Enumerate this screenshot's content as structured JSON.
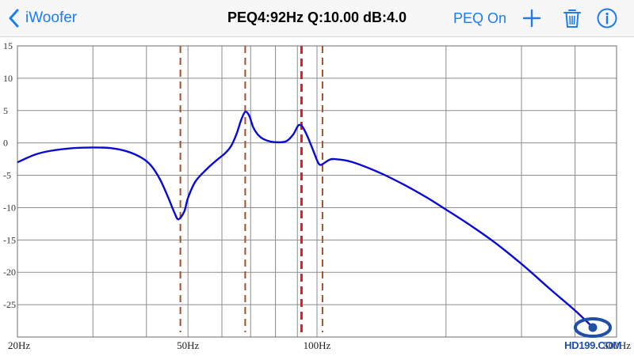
{
  "nav": {
    "back_label": "iWoofer",
    "title": "PEQ4:92Hz Q:10.00 dB:4.0",
    "peq_toggle_label": "PEQ On",
    "icons": [
      "chevron-left-icon",
      "plus-icon",
      "trash-icon",
      "info-icon"
    ],
    "accent_color": "#1c7cf4"
  },
  "watermark": {
    "text": "HD199.COM",
    "color": "#1f4fa8"
  },
  "chart_data": {
    "type": "line",
    "title": "",
    "xlabel": "",
    "ylabel": "",
    "x_scale": "log",
    "xlim": [
      20,
      500
    ],
    "ylim": [
      -30,
      15
    ],
    "y_ticks": [
      15,
      10,
      5,
      0,
      -5,
      -10,
      -15,
      -20,
      -25
    ],
    "y_tick_labels": [
      "15",
      "10",
      "5",
      "0",
      "-5",
      "-10",
      "-15",
      "-20",
      "-25"
    ],
    "x_tick_labels": [
      {
        "value": 20,
        "label": "20Hz"
      },
      {
        "value": 50,
        "label": "50Hz"
      },
      {
        "value": 100,
        "label": "100Hz"
      },
      {
        "value": 500,
        "label": "500Hz"
      }
    ],
    "x_grid": [
      30,
      40,
      50,
      60,
      70,
      80,
      90,
      100,
      200,
      300,
      400
    ],
    "grid": true,
    "peq_markers": [
      {
        "freq": 48,
        "color": "#a0522d",
        "style": "dashed"
      },
      {
        "freq": 68,
        "color": "#a0522d",
        "style": "dashed"
      },
      {
        "freq": 92,
        "color": "#e21b1b",
        "style": "dashed",
        "selected": true
      },
      {
        "freq": 103,
        "color": "#a0522d",
        "style": "dashed"
      }
    ],
    "series": [
      {
        "color": "#0a0ad6",
        "points": [
          [
            20,
            -3.0
          ],
          [
            22,
            -1.8
          ],
          [
            24,
            -1.2
          ],
          [
            27,
            -0.8
          ],
          [
            30,
            -0.7
          ],
          [
            33,
            -0.8
          ],
          [
            36,
            -1.3
          ],
          [
            39,
            -2.3
          ],
          [
            41,
            -3.5
          ],
          [
            43,
            -5.6
          ],
          [
            45,
            -8.5
          ],
          [
            46.5,
            -10.8
          ],
          [
            47.5,
            -11.8
          ],
          [
            49,
            -10.6
          ],
          [
            50,
            -8.5
          ],
          [
            52,
            -6.0
          ],
          [
            55,
            -4.2
          ],
          [
            58,
            -2.8
          ],
          [
            61,
            -1.6
          ],
          [
            63,
            -0.5
          ],
          [
            65,
            1.5
          ],
          [
            66.5,
            3.5
          ],
          [
            68,
            4.8
          ],
          [
            69.5,
            4.2
          ],
          [
            71,
            2.4
          ],
          [
            73,
            1.2
          ],
          [
            75,
            0.6
          ],
          [
            78,
            0.2
          ],
          [
            82,
            0.1
          ],
          [
            85,
            0.3
          ],
          [
            88,
            1.3
          ],
          [
            90,
            2.5
          ],
          [
            91,
            2.8
          ],
          [
            92.5,
            2.5
          ],
          [
            95,
            1.0
          ],
          [
            98,
            -1.2
          ],
          [
            100.5,
            -3.0
          ],
          [
            102,
            -3.4
          ],
          [
            104,
            -3.1
          ],
          [
            107,
            -2.6
          ],
          [
            110,
            -2.5
          ],
          [
            120,
            -2.9
          ],
          [
            140,
            -4.6
          ],
          [
            160,
            -6.5
          ],
          [
            180,
            -8.4
          ],
          [
            200,
            -10.3
          ],
          [
            230,
            -12.9
          ],
          [
            260,
            -15.4
          ],
          [
            300,
            -18.7
          ],
          [
            350,
            -22.6
          ],
          [
            400,
            -25.9
          ],
          [
            440,
            -28.5
          ]
        ]
      }
    ]
  }
}
